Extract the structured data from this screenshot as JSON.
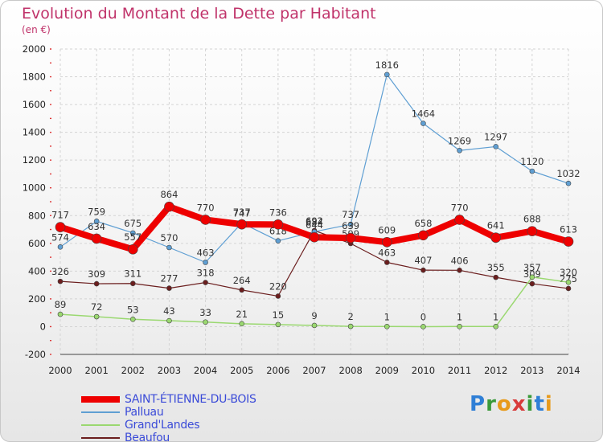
{
  "title": "Evolution du Montant de la Dette par Habitant",
  "unit": "(en €)",
  "logo": {
    "text": "Proxiti",
    "colors": [
      "#2f7fd6",
      "#3a9a3a",
      "#e89a1a",
      "#d83a3a",
      "#3a9a3a",
      "#2f7fd6",
      "#e89a1a"
    ]
  },
  "chart_data": {
    "type": "line",
    "x": [
      "2000",
      "2001",
      "2002",
      "2003",
      "2004",
      "2005",
      "2006",
      "2007",
      "2008",
      "2009",
      "2010",
      "2011",
      "2012",
      "2013",
      "2014"
    ],
    "ylim": [
      -200,
      2000
    ],
    "yticks": [
      -200,
      0,
      200,
      400,
      600,
      800,
      1000,
      1200,
      1400,
      1600,
      1800,
      2000
    ],
    "grid": true,
    "legend_position": "bottom",
    "series": [
      {
        "name": "Beaufou",
        "color": "#6b1e1e",
        "width": 1.2,
        "marker": 3,
        "values": [
          326,
          309,
          311,
          277,
          318,
          264,
          220,
          692,
          599,
          463,
          407,
          406,
          355,
          309,
          275
        ]
      },
      {
        "name": "Grand'Landes",
        "color": "#9ad870",
        "width": 1.5,
        "marker": 3,
        "values": [
          89,
          72,
          53,
          43,
          33,
          21,
          15,
          9,
          2,
          1,
          0,
          1,
          1,
          357,
          320
        ]
      },
      {
        "name": "Palluau",
        "color": "#5f9fd3",
        "width": 1.2,
        "marker": 3,
        "values": [
          574,
          759,
          675,
          570,
          463,
          747,
          618,
          684,
          737,
          1816,
          1464,
          1269,
          1297,
          1120,
          1032
        ]
      },
      {
        "name": "SAINT-ÉTIENNE-DU-BOIS",
        "color": "#ee0000",
        "width": 8,
        "marker": 6,
        "values": [
          717,
          634,
          557,
          864,
          770,
          737,
          736,
          644,
          639,
          609,
          658,
          770,
          641,
          688,
          613
        ]
      }
    ],
    "legend_order": [
      "SAINT-ÉTIENNE-DU-BOIS",
      "Palluau",
      "Grand'Landes",
      "Beaufou"
    ],
    "legend_colors": [
      "#ee0000",
      "#5f9fd3",
      "#9ad870",
      "#6b1e1e"
    ]
  }
}
